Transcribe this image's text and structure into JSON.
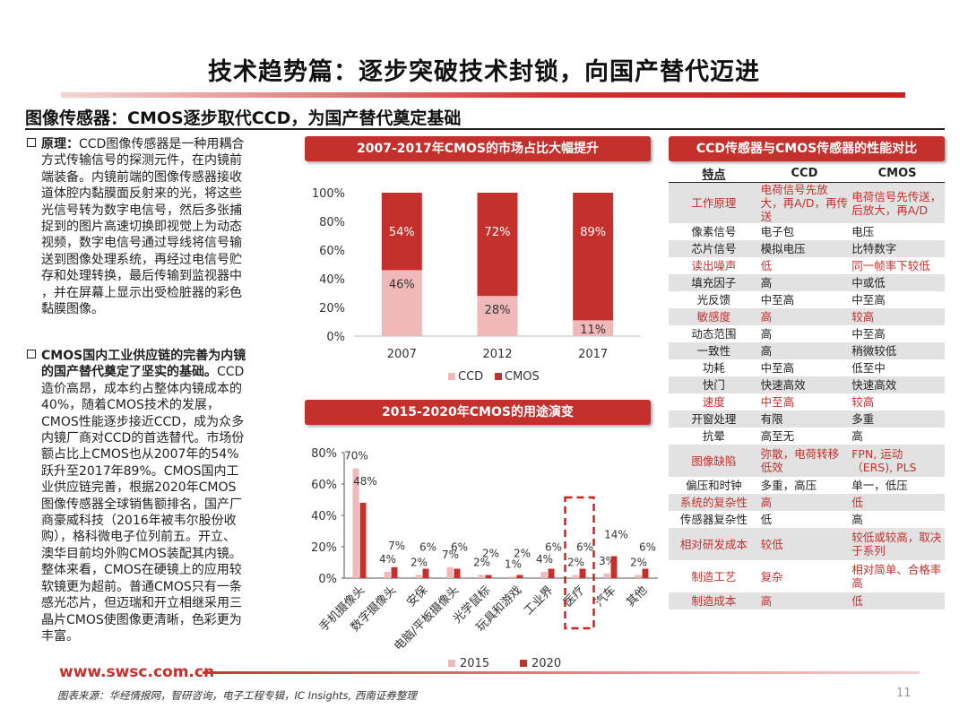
{
  "title": "技术趋势篇：逐步突破技术封锁，向国产替代迈进",
  "subtitle": "图像传感器：CMOS逐步取代CCD，为国产替代奠定基础",
  "para1": {
    "label": "原理：",
    "lines": [
      "CCD图像传感器是一种用耦合",
      "方式传输信号的探测元件，在内镜前",
      "端装备。内镜前端的图像传感器接收",
      "道体腔内黏膜面反射来的光，将这些",
      "光信号转为数字电信号，然后多张捕",
      "捉到的图片高速切换即视觉上为动态",
      "视频，数字电信号通过导线将信号输",
      "送到图像处理系统，再经过电信号贮",
      "存和处理转换，最后传输到监视器中",
      "，并在屏幕上显示出受检脏器的彩色",
      "黏膜图像。"
    ]
  },
  "para2": {
    "bold_lines": [
      "CMOS国内工业供应链的完善为内镜",
      "的国产替代奠定了坚实的基础。"
    ],
    "tail_on_second": "CCD",
    "lines": [
      "造价高昂，成本约占整体内镜成本的",
      "40%，随着CMOS技术的发展，",
      "CMOS性能逐步接近CCD，成为众多",
      "内镜厂商对CCD的首选替代。市场份",
      "额占比上CMOS也从2007年的54%",
      "跃升至2017年89%。CMOS国内工",
      "业供应链完善，根据2020年CMOS",
      "图像传感器全球销售额排名，国产厂",
      "商豪威科技（2016年被韦尔股份收",
      "购），格科微电子位列前五。开立、",
      "澳华目前均外购CMOS装配其内镜。",
      "整体来看，CMOS在硬镜上的应用较",
      "软镜更为超前。普通CMOS只有一条",
      "感光芯片，但迈瑞和开立相继采用三",
      "晶片CMOS使图像更清晰，色彩更为",
      "丰富。"
    ]
  },
  "banner1": "2007-2017年CMOS的市场占比大幅提升",
  "banner2": "2015-2020年CMOS的用途演变",
  "banner3": "CCD传感器与CMOS传感器的性能对比",
  "colors": {
    "accent": "#c4302c",
    "ccd": "#f0b8b8",
    "cmos": "#c4302c",
    "s2015": "#f0b8b8",
    "s2020": "#c4302c"
  },
  "chart_data": [
    {
      "type": "bar",
      "stacked": true,
      "categories": [
        "2007",
        "2012",
        "2017"
      ],
      "series": [
        {
          "name": "CCD",
          "values": [
            46,
            28,
            11
          ]
        },
        {
          "name": "CMOS",
          "values": [
            54,
            72,
            89
          ]
        }
      ],
      "ylim": [
        0,
        100
      ],
      "yticks": [
        "0%",
        "20%",
        "40%",
        "60%",
        "80%",
        "100%"
      ],
      "legend": "bottom"
    },
    {
      "type": "bar",
      "categories": [
        "手机摄像头",
        "数字摄像头",
        "安保",
        "电脑/平板摄像头",
        "光学鼠标",
        "玩具和游戏",
        "工业界",
        "医疗",
        "汽车",
        "其他"
      ],
      "series": [
        {
          "name": "2015",
          "values": [
            70,
            4,
            2,
            7,
            2,
            1,
            4,
            2,
            3,
            2
          ]
        },
        {
          "name": "2020",
          "values": [
            48,
            7,
            6,
            6,
            2,
            2,
            6,
            6,
            14,
            6
          ]
        }
      ],
      "labels_2015": [
        "70%",
        "4%",
        "2%",
        "7%",
        "2%",
        "1%",
        "4%",
        "2%",
        "3%",
        "2%"
      ],
      "labels_2020": [
        "48%",
        "7%",
        "6%",
        "6%",
        "2%",
        "2%",
        "6%",
        "6%",
        "14%",
        "6%"
      ],
      "ylim": [
        0,
        80
      ],
      "yticks": [
        "0%",
        "20%",
        "40%",
        "60%",
        "80%"
      ],
      "highlight": "医疗",
      "legend": "bottom"
    }
  ],
  "table": {
    "headers": [
      "特点",
      "CCD",
      "CMOS"
    ],
    "rows": [
      {
        "f": "工作原理",
        "ccd": "电荷信号先放大，再A/D，再传送",
        "cmos": "电荷信号先传送，后放大，再A/D",
        "red": true
      },
      {
        "f": "像素信号",
        "ccd": "电子包",
        "cmos": "电压",
        "red": false
      },
      {
        "f": "芯片信号",
        "ccd": "模拟电压",
        "cmos": "比特数字",
        "red": false
      },
      {
        "f": "读出噪声",
        "ccd": "低",
        "cmos": "同一帧率下较低",
        "red": true
      },
      {
        "f": "填充因子",
        "ccd": "高",
        "cmos": "中或低",
        "red": false
      },
      {
        "f": "光反馈",
        "ccd": "中至高",
        "cmos": "中至高",
        "red": false
      },
      {
        "f": "敏感度",
        "ccd": "高",
        "cmos": "较高",
        "red": true
      },
      {
        "f": "动态范围",
        "ccd": "高",
        "cmos": "中至高",
        "red": false
      },
      {
        "f": "一致性",
        "ccd": "高",
        "cmos": "稍微较低",
        "red": false
      },
      {
        "f": "功耗",
        "ccd": "中至高",
        "cmos": "低至中",
        "red": false
      },
      {
        "f": "快门",
        "ccd": "快速高效",
        "cmos": "快速高效",
        "red": false
      },
      {
        "f": "速度",
        "ccd": "中至高",
        "cmos": "较高",
        "red": true
      },
      {
        "f": "开窗处理",
        "ccd": "有限",
        "cmos": "多重",
        "red": false
      },
      {
        "f": "抗晕",
        "ccd": "高至无",
        "cmos": "高",
        "red": false
      },
      {
        "f": "图像缺陷",
        "ccd": "弥散，电荷转移低效",
        "cmos": "FPN, 运动（ERS), PLS",
        "red": true
      },
      {
        "f": "偏压和时钟",
        "ccd": "多重，高压",
        "cmos": "单一，低压",
        "red": false
      },
      {
        "f": "系统的复杂性",
        "ccd": "高",
        "cmos": "低",
        "red": true
      },
      {
        "f": "传感器复杂性",
        "ccd": "低",
        "cmos": "高",
        "red": false
      },
      {
        "f": "相对研发成本",
        "ccd": "较低",
        "cmos": "较低或较高，取决于系列",
        "red": true
      },
      {
        "f": "制造工艺",
        "ccd": "复杂",
        "cmos": "相对简单、合格率高",
        "red": true
      },
      {
        "f": "制造成本",
        "ccd": "高",
        "cmos": "低",
        "red": true
      }
    ]
  },
  "footer": {
    "url": "www.swsc.com.cn",
    "source": "图表来源：华经情报网，智研咨询，电子工程专辑，IC Insights, 西南证券整理",
    "page": "11"
  }
}
